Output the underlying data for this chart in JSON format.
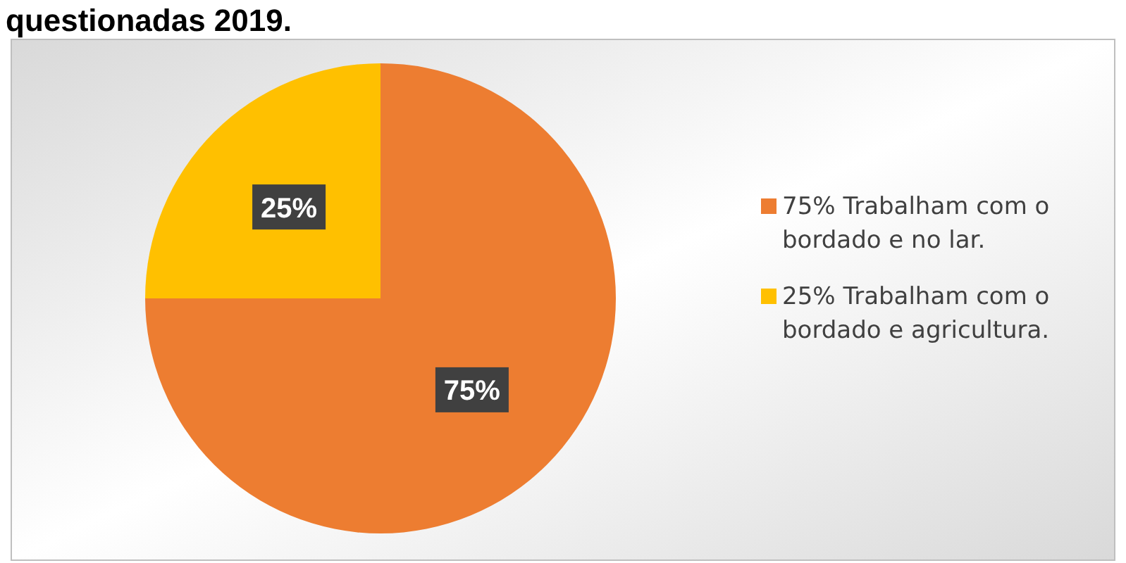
{
  "chart_data": {
    "type": "pie",
    "title": "questionadas 2019.",
    "categories": [
      "75% Trabalham com o bordado e no lar.",
      "25% Trabalham com o bordado e  agricultura."
    ],
    "values": [
      75,
      25
    ],
    "colors": [
      "#ed7d31",
      "#ffc000"
    ],
    "value_labels": [
      "75%",
      "25%"
    ],
    "legend": "right"
  }
}
